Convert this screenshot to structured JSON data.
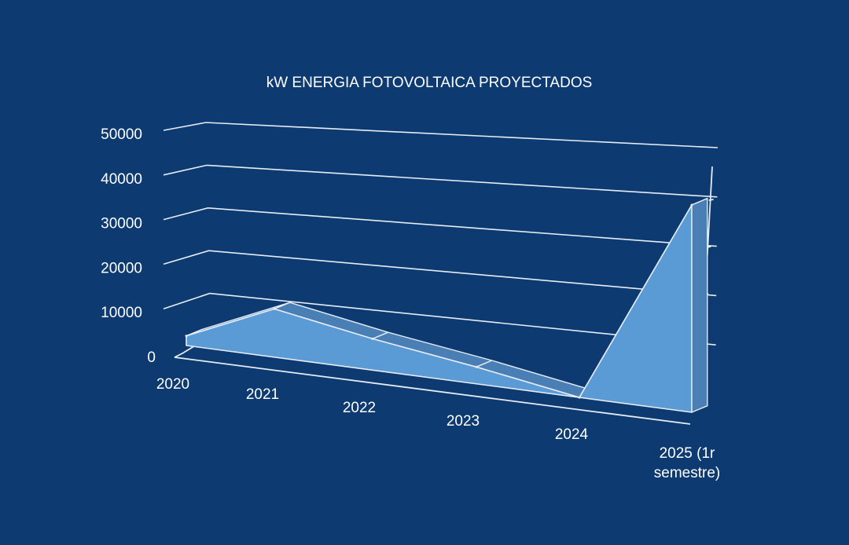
{
  "chart_data": {
    "type": "area",
    "title": "kW ENERGIA FOTOVOLTAICA PROYECTADOS",
    "xlabel": "",
    "ylabel": "",
    "categories": [
      "2020",
      "2021",
      "2022",
      "2023",
      "2024",
      "2025 (1r semestre)"
    ],
    "category_lines": [
      [
        "2020"
      ],
      [
        "2021"
      ],
      [
        "2022"
      ],
      [
        "2023"
      ],
      [
        "2024"
      ],
      [
        "2025 (1r",
        "semestre)"
      ]
    ],
    "y_ticks": [
      "0",
      "10000",
      "20000",
      "30000",
      "40000",
      "50000"
    ],
    "ylim": [
      0,
      50000
    ],
    "series": [
      {
        "values": [
          2000,
          10000,
          6500,
          3500,
          0,
          43000
        ]
      }
    ],
    "grid": true,
    "legend": "none",
    "style": "3d",
    "colors": {
      "background": "#0d3a71",
      "area_front": "#5b9bd5",
      "area_top": "#4a7fb5",
      "grid": "#e6ecf3",
      "text": "#ffffff"
    }
  }
}
